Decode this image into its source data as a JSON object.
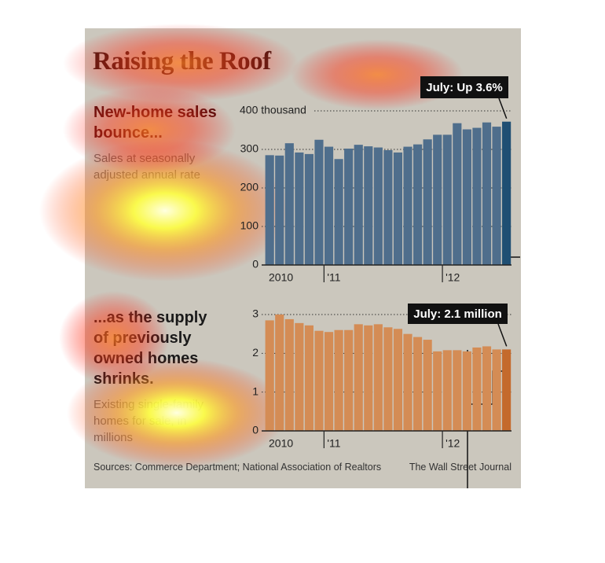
{
  "title": "Raising the Roof",
  "source": "Sources: Commerce Department; National Association of Realtors",
  "credit": "The Wall Street Journal",
  "chart_data": [
    {
      "type": "bar",
      "title": "New-home sales bounce...",
      "subtitle": "Sales at seasonally adjusted annual rate",
      "annotation": "July: Up 3.6%",
      "categories": [
        "2010",
        null,
        null,
        null,
        null,
        null,
        "'11",
        null,
        null,
        null,
        null,
        null,
        null,
        null,
        null,
        null,
        null,
        null,
        "'12",
        null,
        null,
        null,
        null,
        null,
        null
      ],
      "values": [
        285,
        284,
        316,
        292,
        288,
        325,
        307,
        275,
        302,
        312,
        308,
        305,
        298,
        292,
        307,
        313,
        326,
        338,
        338,
        368,
        352,
        356,
        370,
        359,
        372
      ],
      "color": "#4f6e8c",
      "highlight_color": "#1f4f73",
      "ylim": [
        0,
        400
      ],
      "yticks": [
        0,
        100,
        200,
        300,
        {
          "value": 400,
          "label": "400 thousand"
        }
      ],
      "grid": true
    },
    {
      "type": "bar",
      "title": "...as the supply of previously owned homes shrinks.",
      "subtitle": "Existing single-family homes for sale, in millions",
      "annotation": "July: 2.1 million",
      "categories": [
        "2010",
        null,
        null,
        null,
        null,
        null,
        "'11",
        null,
        null,
        null,
        null,
        null,
        null,
        null,
        null,
        null,
        null,
        null,
        "'12",
        null,
        null,
        null,
        null,
        null,
        null
      ],
      "values": [
        2.85,
        3.0,
        2.88,
        2.78,
        2.72,
        2.58,
        2.55,
        2.6,
        2.6,
        2.75,
        2.72,
        2.75,
        2.67,
        2.63,
        2.5,
        2.42,
        2.35,
        2.05,
        2.08,
        2.08,
        2.05,
        2.15,
        2.18,
        2.1,
        2.1
      ],
      "color": "#d48c55",
      "highlight_color": "#c46a2c",
      "ylim": [
        0,
        3
      ],
      "yticks": [
        0,
        1,
        2,
        3
      ],
      "grid": true
    }
  ]
}
